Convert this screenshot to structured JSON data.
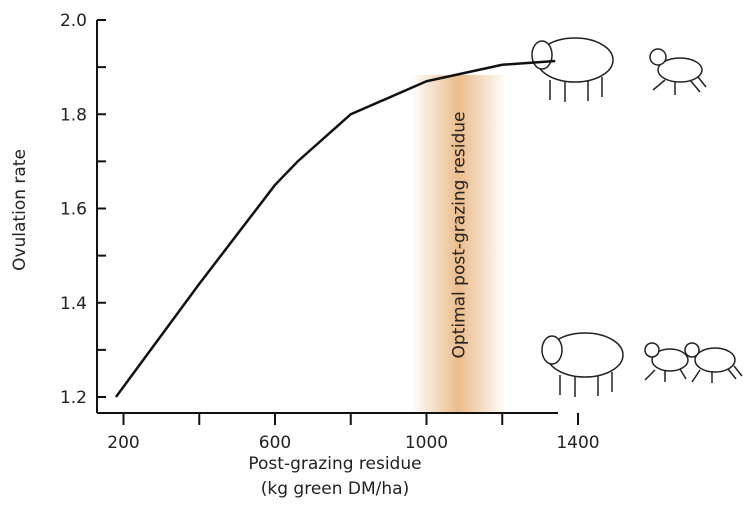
{
  "chart_data": {
    "type": "line",
    "x_label_lines": [
      "Post-grazing residue",
      "(kg green DM/ha)"
    ],
    "y_label": "Ovulation rate",
    "annotation": "Optimal post-grazing residue",
    "band": [
      960,
      1210
    ],
    "band_color": "#e8b57e",
    "x": [
      180,
      400,
      600,
      660,
      800,
      1000,
      1200,
      1340
    ],
    "series": [
      {
        "color": "#111111",
        "values": [
          1.2,
          1.44,
          1.65,
          1.7,
          1.8,
          1.87,
          1.905,
          1.913
        ]
      }
    ],
    "xlim": [
      130,
      1400
    ],
    "xticks": [
      200,
      600,
      1000,
      1400
    ],
    "xminor_ticks": [
      400,
      800,
      1200
    ],
    "ylim": [
      1.2,
      2.0
    ],
    "yticks": [
      1.2,
      1.4,
      1.6,
      1.8,
      {
        "value": 2.0,
        "label": "2.0"
      }
    ],
    "yminor_ticks": [
      1.3,
      1.5,
      1.7,
      1.9
    ]
  }
}
